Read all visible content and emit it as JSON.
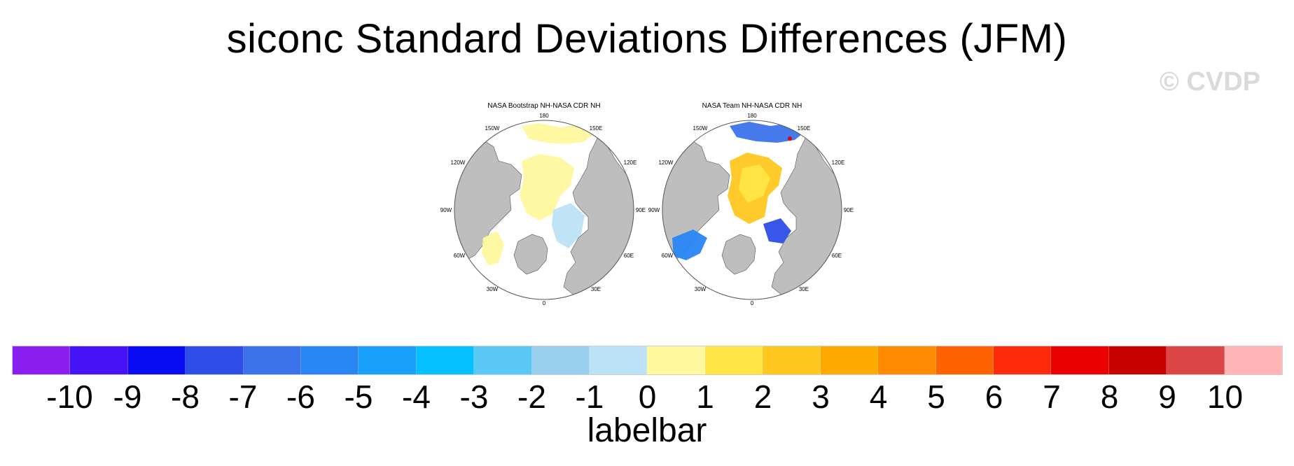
{
  "title": "siconc Standard Deviations Differences (JFM)",
  "watermark": "© CVDP",
  "panels": [
    {
      "title": "NASA Bootstrap NH-NASA CDR NH",
      "lon_labels": [
        "180",
        "150E",
        "120E",
        "90E",
        "60E",
        "30E",
        "0",
        "30W",
        "60W",
        "90W",
        "120W",
        "150W"
      ]
    },
    {
      "title": "NASA Team NH-NASA CDR NH",
      "lon_labels": [
        "180",
        "150E",
        "120E",
        "90E",
        "60E",
        "30E",
        "0",
        "30W",
        "60W",
        "90W",
        "120W",
        "150W"
      ]
    }
  ],
  "colors": {
    "land": "#bebebe",
    "ocean": "#ffffff",
    "outline": "#444444"
  },
  "labelbar": {
    "title": "labelbar",
    "ticks": [
      "-10",
      "-9",
      "-8",
      "-7",
      "-6",
      "-5",
      "-4",
      "-3",
      "-2",
      "-1",
      "0",
      "1",
      "2",
      "3",
      "4",
      "5",
      "6",
      "7",
      "8",
      "9",
      "10"
    ],
    "colors": [
      "#8a1ef0",
      "#4513f5",
      "#0b0cf6",
      "#2d4ee8",
      "#3c73ec",
      "#2886f5",
      "#18a0fa",
      "#03c0ff",
      "#5ac8f5",
      "#98d0ee",
      "#bde1f6",
      "#fff89e",
      "#ffe545",
      "#ffc71f",
      "#ffaa00",
      "#ff8a00",
      "#ff6200",
      "#ff2a0a",
      "#ee0000",
      "#c90000",
      "#dc4545",
      "#ffb5b5"
    ]
  }
}
